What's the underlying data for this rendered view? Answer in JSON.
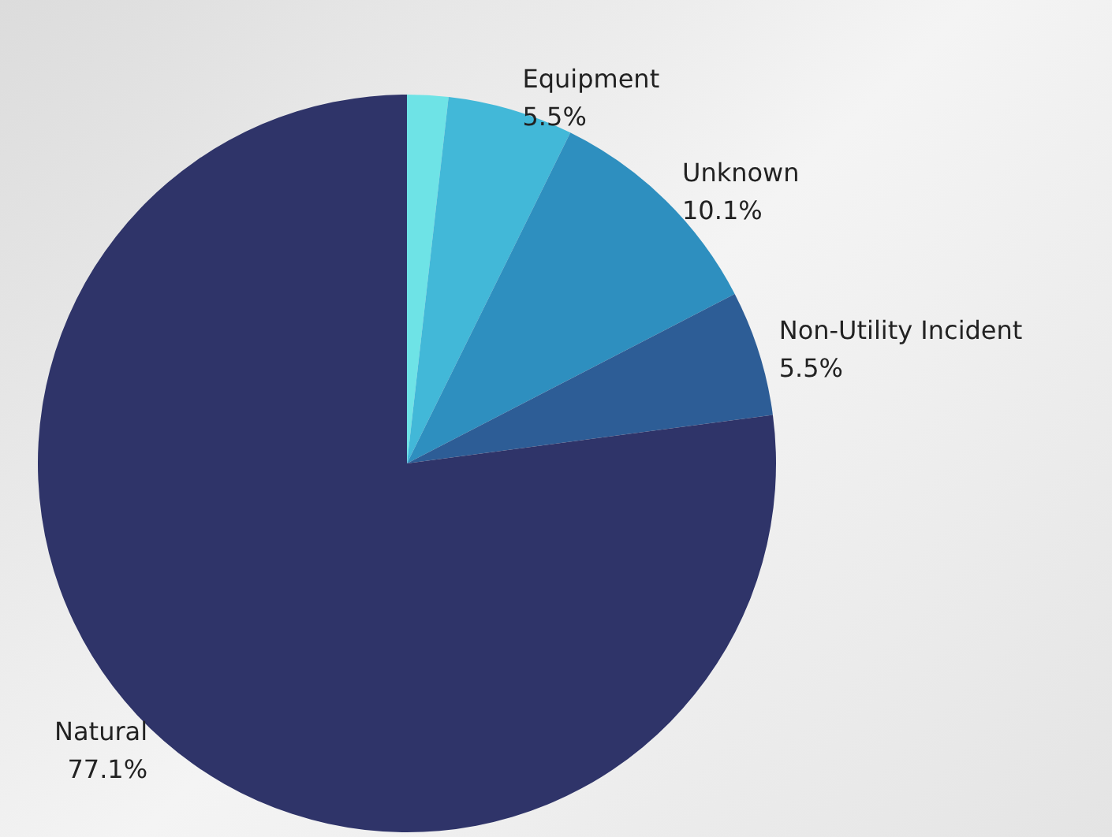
{
  "chart_data": {
    "type": "pie",
    "categories": [
      null,
      "Equipment",
      "Unknown",
      "Non-Utility Incident",
      "Natural"
    ],
    "values": [
      1.8,
      5.5,
      10.1,
      5.5,
      77.1
    ],
    "colors": [
      "#6ee3e6",
      "#42b8d8",
      "#2e8fbf",
      "#2d5d96",
      "#2f3469"
    ],
    "value_labels": [
      null,
      "5.5%",
      "10.1%",
      "5.5%",
      "77.1%"
    ]
  }
}
